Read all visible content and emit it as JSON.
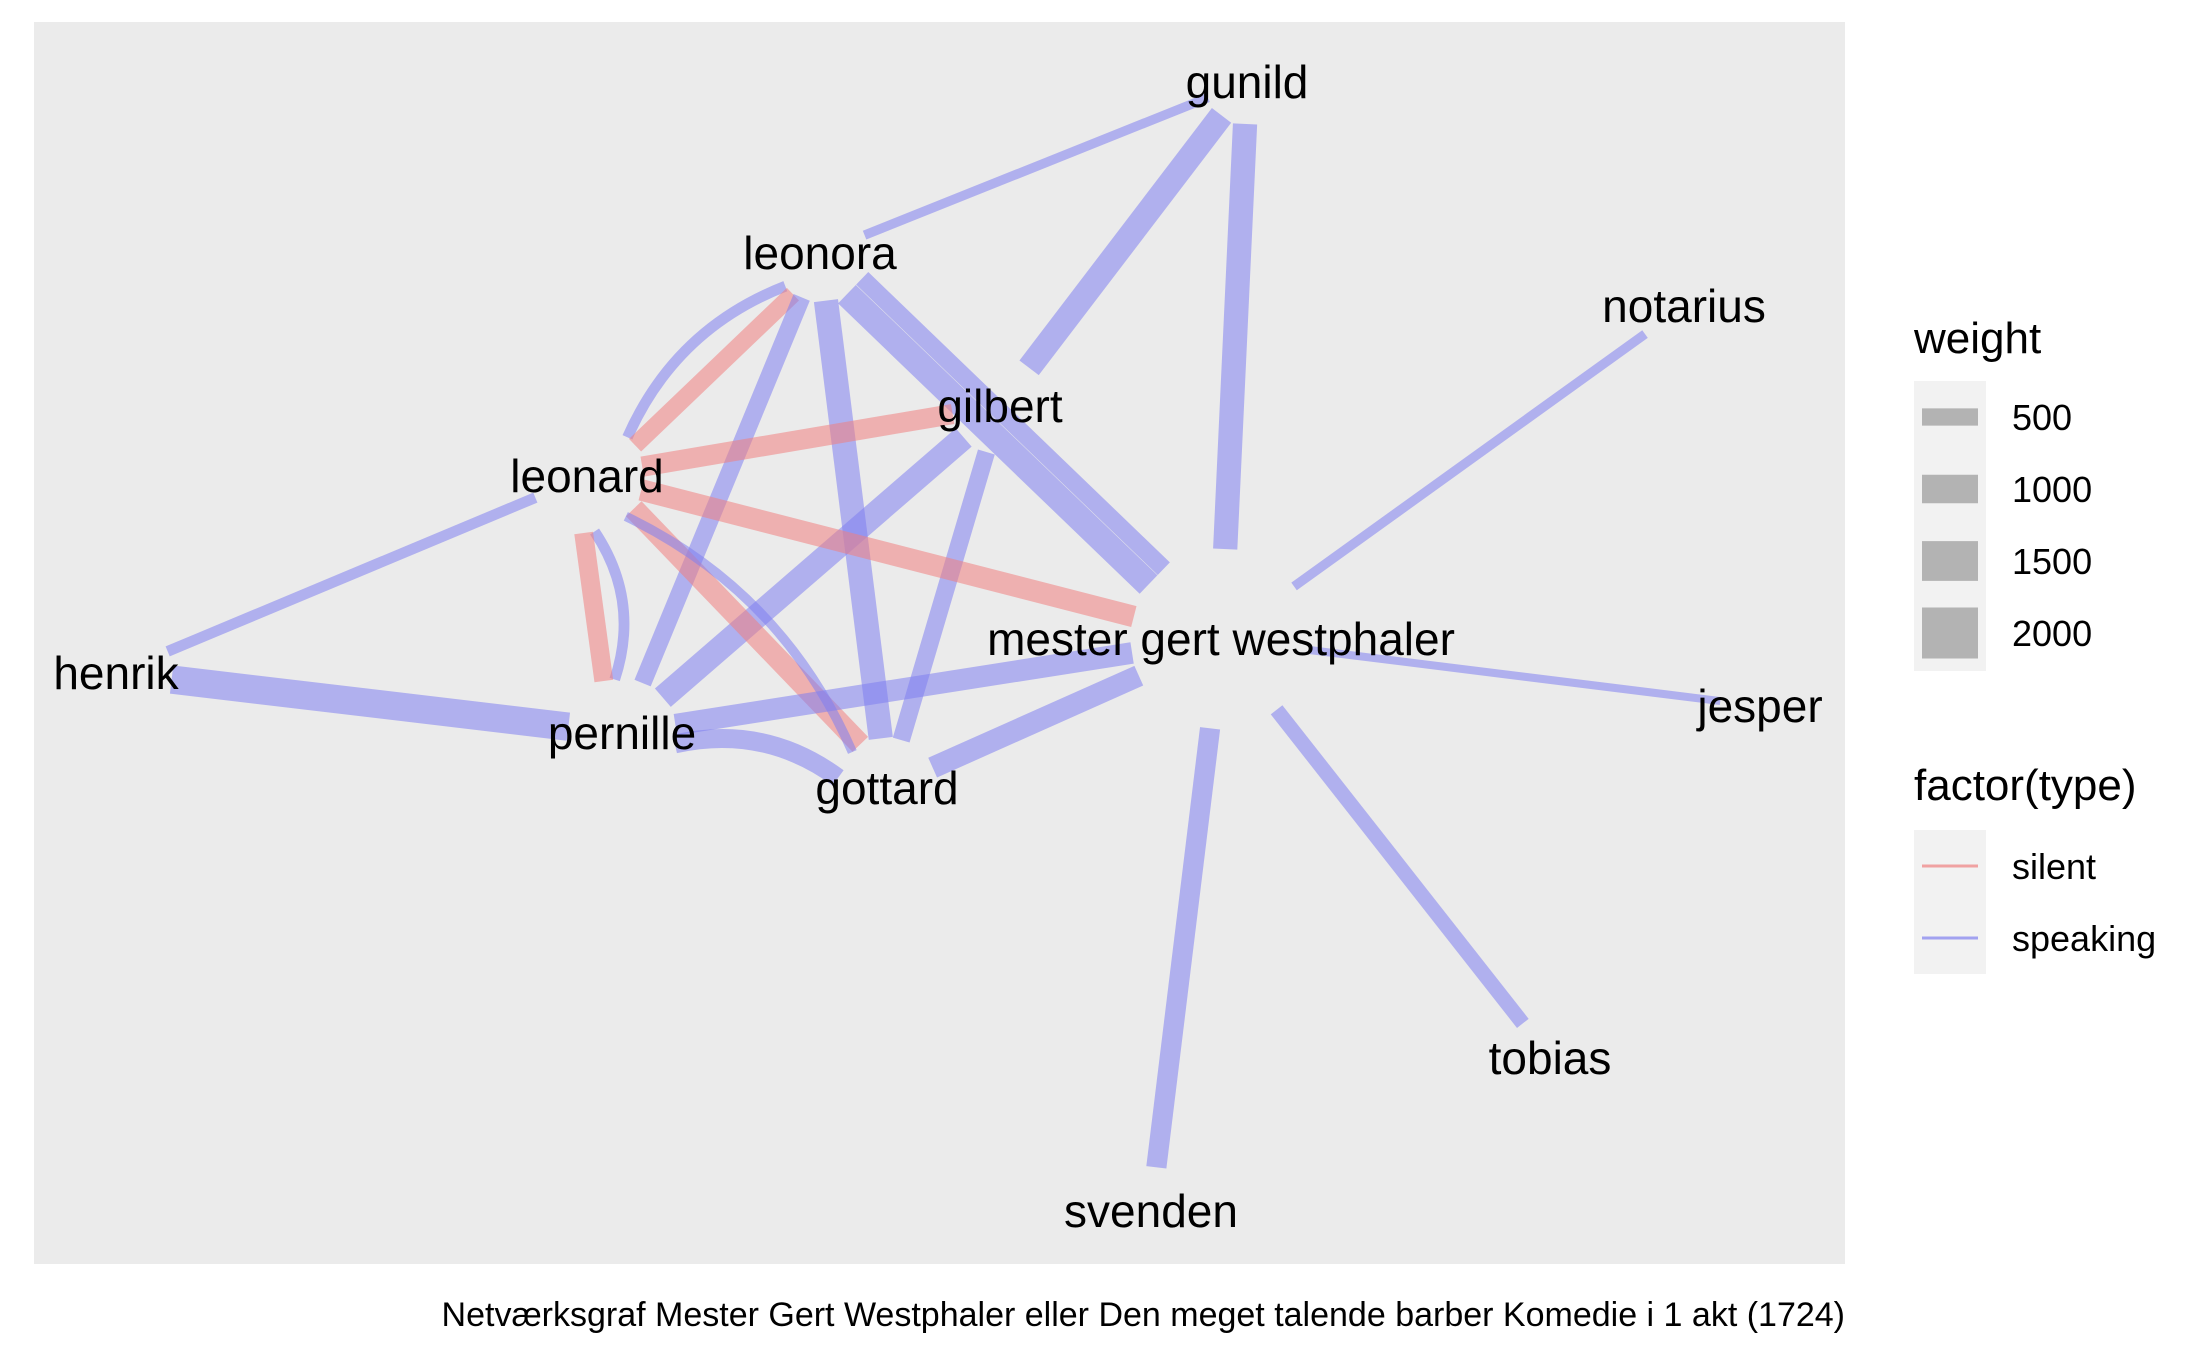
{
  "caption": "Netværksgraf Mester Gert Westphaler eller Den meget talende barber Komedie i 1 akt (1724)",
  "colors": {
    "panel": "#ebebeb",
    "silent": "#f08080",
    "speaking": "#8080f0",
    "legend_key_bg": "#f2f2f2",
    "legend_key_fill": "#b3b3b3"
  },
  "nodes": [
    {
      "id": "gunild",
      "label": "gunild"
    },
    {
      "id": "leonora",
      "label": "leonora"
    },
    {
      "id": "notarius",
      "label": "notarius"
    },
    {
      "id": "gilbert",
      "label": "gilbert"
    },
    {
      "id": "leonard",
      "label": "leonard"
    },
    {
      "id": "mester",
      "label": "mester gert westphaler"
    },
    {
      "id": "henrik",
      "label": "henrik"
    },
    {
      "id": "jesper",
      "label": "jesper"
    },
    {
      "id": "pernille",
      "label": "pernille"
    },
    {
      "id": "gottard",
      "label": "gottard"
    },
    {
      "id": "tobias",
      "label": "tobias"
    },
    {
      "id": "svenden",
      "label": "svenden"
    }
  ],
  "edges": [
    {
      "source": "leonora",
      "target": "gunild",
      "type": "speaking",
      "weight": 400
    },
    {
      "source": "gilbert",
      "target": "gunild",
      "type": "speaking",
      "weight": 1500
    },
    {
      "source": "mester",
      "target": "gunild",
      "type": "speaking",
      "weight": 1500
    },
    {
      "source": "leonard",
      "target": "leonora",
      "type": "speaking",
      "weight": 500
    },
    {
      "source": "leonard",
      "target": "leonora",
      "type": "silent",
      "weight": 1000
    },
    {
      "source": "pernille",
      "target": "leonora",
      "type": "speaking",
      "weight": 1000
    },
    {
      "source": "gottard",
      "target": "leonora",
      "type": "speaking",
      "weight": 1500
    },
    {
      "source": "mester",
      "target": "leonora",
      "type": "speaking",
      "weight": 1600
    },
    {
      "source": "mester",
      "target": "leonora",
      "type": "speaking",
      "weight": 1000
    },
    {
      "source": "leonard",
      "target": "gilbert",
      "type": "silent",
      "weight": 1200
    },
    {
      "source": "pernille",
      "target": "gilbert",
      "type": "speaking",
      "weight": 1500
    },
    {
      "source": "gottard",
      "target": "gilbert",
      "type": "speaking",
      "weight": 1000
    },
    {
      "source": "leonard",
      "target": "mester",
      "type": "silent",
      "weight": 1300
    },
    {
      "source": "henrik",
      "target": "leonard",
      "type": "speaking",
      "weight": 500
    },
    {
      "source": "leonard",
      "target": "pernille",
      "type": "speaking",
      "weight": 500
    },
    {
      "source": "leonard",
      "target": "pernille",
      "type": "silent",
      "weight": 1100
    },
    {
      "source": "leonard",
      "target": "gottard",
      "type": "silent",
      "weight": 1300
    },
    {
      "source": "leonard",
      "target": "gottard",
      "type": "speaking",
      "weight": 400
    },
    {
      "source": "henrik",
      "target": "pernille",
      "type": "speaking",
      "weight": 1800
    },
    {
      "source": "pernille",
      "target": "gottard",
      "type": "speaking",
      "weight": 1100
    },
    {
      "source": "pernille",
      "target": "mester",
      "type": "speaking",
      "weight": 1300
    },
    {
      "source": "gottard",
      "target": "mester",
      "type": "speaking",
      "weight": 1300
    },
    {
      "source": "notarius",
      "target": "mester",
      "type": "speaking",
      "weight": 400
    },
    {
      "source": "mester",
      "target": "jesper",
      "type": "speaking",
      "weight": 300
    },
    {
      "source": "mester",
      "target": "tobias",
      "type": "speaking",
      "weight": 800
    },
    {
      "source": "mester",
      "target": "svenden",
      "type": "speaking",
      "weight": 1200
    }
  ],
  "legend": {
    "weight": {
      "title": "weight",
      "items": [
        {
          "label": "500",
          "value": 500
        },
        {
          "label": "1000",
          "value": 1000
        },
        {
          "label": "1500",
          "value": 1500
        },
        {
          "label": "2000",
          "value": 2000
        }
      ]
    },
    "type": {
      "title": "factor(type)",
      "items": [
        {
          "label": "silent",
          "type": "silent"
        },
        {
          "label": "speaking",
          "type": "speaking"
        }
      ]
    }
  }
}
